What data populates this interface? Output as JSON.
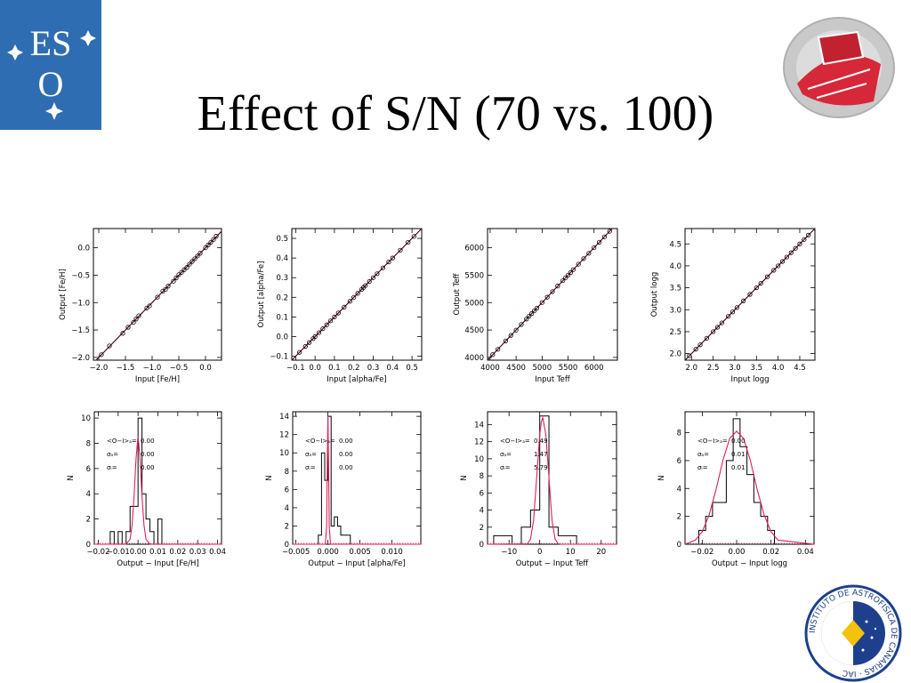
{
  "slide": {
    "title": "Effect of S/N (70 vs. 100)",
    "eso_logo_text": "ESO",
    "iac_logo_text": "INSTITUTO DE ASTROFISICA DE CANARIAS · IAC"
  },
  "colors": {
    "eso_blue": "#2f6db3",
    "fit_line": "#e0205a",
    "points": "#000000"
  },
  "chart_data": [
    {
      "type": "scatter",
      "xlabel": "Input [Fe/H]",
      "ylabel": "Output [Fe/H]",
      "xlim": [
        -2.1,
        0.3
      ],
      "ylim": [
        -2.05,
        0.35
      ],
      "xticks": [
        -2.0,
        -1.5,
        -1.0,
        -0.5,
        0.0
      ],
      "xticklabels": [
        "−2.0",
        "−1.5",
        "−1.0",
        "−0.5",
        "0.0"
      ],
      "yticks": [
        -2.0,
        -1.5,
        -1.0,
        -0.5,
        0.0
      ],
      "yticklabels": [
        "−2.0",
        "−1.5",
        "−1.0",
        "−0.5",
        "0.0"
      ],
      "x": [
        -1.95,
        -1.8,
        -1.55,
        -1.45,
        -1.35,
        -1.3,
        -1.25,
        -1.1,
        -1.05,
        -0.9,
        -0.8,
        -0.75,
        -0.7,
        -0.6,
        -0.55,
        -0.5,
        -0.45,
        -0.4,
        -0.35,
        -0.3,
        -0.25,
        -0.2,
        -0.15,
        -0.1,
        0.0,
        0.05,
        0.1,
        0.15,
        0.2
      ],
      "y": [
        -1.95,
        -1.79,
        -1.56,
        -1.45,
        -1.36,
        -1.3,
        -1.24,
        -1.1,
        -1.06,
        -0.9,
        -0.79,
        -0.76,
        -0.7,
        -0.61,
        -0.55,
        -0.49,
        -0.45,
        -0.4,
        -0.36,
        -0.3,
        -0.25,
        -0.2,
        -0.15,
        -0.1,
        0.0,
        0.05,
        0.1,
        0.15,
        0.21
      ]
    },
    {
      "type": "scatter",
      "xlabel": "Input [alpha/Fe]",
      "ylabel": "Output [alpha/Fe]",
      "xlim": [
        -0.12,
        0.55
      ],
      "ylim": [
        -0.12,
        0.55
      ],
      "xticks": [
        -0.1,
        0.0,
        0.1,
        0.2,
        0.3,
        0.4,
        0.5
      ],
      "xticklabels": [
        "−0.1",
        "0.0",
        "0.1",
        "0.2",
        "0.3",
        "0.4",
        "0.5"
      ],
      "yticks": [
        -0.1,
        0.0,
        0.1,
        0.2,
        0.3,
        0.4,
        0.5
      ],
      "yticklabels": [
        "−0.1",
        "0.0",
        "0.1",
        "0.2",
        "0.3",
        "0.4",
        "0.5"
      ],
      "x": [
        -0.08,
        -0.05,
        -0.03,
        -0.01,
        0.0,
        0.02,
        0.04,
        0.06,
        0.08,
        0.1,
        0.12,
        0.15,
        0.18,
        0.2,
        0.22,
        0.24,
        0.25,
        0.26,
        0.28,
        0.3,
        0.32,
        0.35,
        0.38,
        0.4,
        0.44,
        0.48,
        0.51
      ],
      "y": [
        -0.08,
        -0.05,
        -0.03,
        -0.01,
        0.0,
        0.02,
        0.04,
        0.06,
        0.08,
        0.1,
        0.12,
        0.15,
        0.18,
        0.2,
        0.22,
        0.24,
        0.25,
        0.26,
        0.28,
        0.3,
        0.32,
        0.35,
        0.38,
        0.4,
        0.44,
        0.48,
        0.51
      ]
    },
    {
      "type": "scatter",
      "xlabel": "Input Teff",
      "ylabel": "Output Teff",
      "xlim": [
        3950,
        6450
      ],
      "ylim": [
        3950,
        6350
      ],
      "xticks": [
        4000,
        4500,
        5000,
        5500,
        6000
      ],
      "xticklabels": [
        "4000",
        "4500",
        "5000",
        "5500",
        "6000"
      ],
      "yticks": [
        4000,
        4500,
        5000,
        5500,
        6000
      ],
      "yticklabels": [
        "4000",
        "4500",
        "5000",
        "5500",
        "6000"
      ],
      "x": [
        4050,
        4150,
        4300,
        4400,
        4500,
        4600,
        4700,
        4750,
        4800,
        4850,
        4900,
        5000,
        5100,
        5200,
        5300,
        5400,
        5450,
        5500,
        5550,
        5600,
        5700,
        5800,
        5900,
        6000,
        6100,
        6200,
        6300
      ],
      "y": [
        4052,
        4148,
        4301,
        4402,
        4498,
        4601,
        4700,
        4752,
        4799,
        4851,
        4900,
        5001,
        5099,
        5200,
        5302,
        5400,
        5451,
        5500,
        5549,
        5601,
        5700,
        5802,
        5899,
        6000,
        6101,
        6199,
        6300
      ]
    },
    {
      "type": "scatter",
      "xlabel": "Input logg",
      "ylabel": "Output logg",
      "xlim": [
        1.85,
        4.85
      ],
      "ylim": [
        1.85,
        4.85
      ],
      "xticks": [
        2.0,
        2.5,
        3.0,
        3.5,
        4.0,
        4.5
      ],
      "xticklabels": [
        "2.0",
        "2.5",
        "3.0",
        "3.5",
        "4.0",
        "4.5"
      ],
      "yticks": [
        2.0,
        2.5,
        3.0,
        3.5,
        4.0,
        4.5
      ],
      "yticklabels": [
        "2.0",
        "2.5",
        "3.0",
        "3.5",
        "4.0",
        "4.5"
      ],
      "x": [
        1.95,
        2.1,
        2.2,
        2.35,
        2.5,
        2.6,
        2.7,
        2.85,
        2.95,
        3.05,
        3.2,
        3.35,
        3.5,
        3.6,
        3.75,
        3.9,
        4.0,
        4.1,
        4.2,
        4.3,
        4.4,
        4.5,
        4.6,
        4.7
      ],
      "y": [
        1.95,
        2.1,
        2.2,
        2.35,
        2.5,
        2.6,
        2.7,
        2.85,
        2.95,
        3.05,
        3.2,
        3.35,
        3.5,
        3.6,
        3.75,
        3.9,
        4.0,
        4.1,
        4.2,
        4.3,
        4.4,
        4.5,
        4.6,
        4.7
      ]
    },
    {
      "type": "histogram",
      "xlabel": "Output − Input [Fe/H]",
      "ylabel": "N",
      "xlim": [
        -0.022,
        0.042
      ],
      "ylim": [
        0,
        10.5
      ],
      "xticks": [
        -0.02,
        -0.01,
        0.0,
        0.01,
        0.02,
        0.03,
        0.04
      ],
      "xticklabels": [
        "−0.02",
        "−0.01",
        "0.00",
        "0.01",
        "0.02",
        "0.03",
        "0.04"
      ],
      "yticks": [
        0,
        2,
        4,
        6,
        8,
        10
      ],
      "yticklabels": [
        "0",
        "2",
        "4",
        "6",
        "8",
        "10"
      ],
      "bin_edges": [
        -0.014,
        -0.012,
        -0.01,
        -0.008,
        -0.006,
        -0.004,
        -0.002,
        0.0,
        0.002,
        0.004,
        0.006,
        0.008,
        0.01,
        0.012
      ],
      "counts": [
        1,
        0,
        1,
        0,
        1,
        3,
        3,
        10,
        4,
        2,
        1,
        0,
        2
      ],
      "fit_x": [
        -0.022,
        -0.006,
        -0.004,
        -0.003,
        -0.002,
        -0.001,
        0.0,
        0.001,
        0.002,
        0.003,
        0.004,
        0.006,
        0.042
      ],
      "fit_y": [
        0,
        0.01,
        0.4,
        1.5,
        3.8,
        6.8,
        8.6,
        6.8,
        3.8,
        1.5,
        0.4,
        0.01,
        0
      ],
      "stats": [
        {
          "label": "<O−I>ₐ=",
          "value": "0.00"
        },
        {
          "label": "σₐ=",
          "value": "0.00"
        },
        {
          "label": "σᵢ=",
          "value": "0.00"
        }
      ]
    },
    {
      "type": "histogram",
      "xlabel": "Output − Input [alpha/Fe]",
      "ylabel": "N",
      "xlim": [
        -0.0055,
        0.0145
      ],
      "ylim": [
        0,
        14.5
      ],
      "xticks": [
        -0.005,
        0.0,
        0.005,
        0.01
      ],
      "xticklabels": [
        "−0.005",
        "0.000",
        "0.005",
        "0.010"
      ],
      "yticks": [
        0,
        2,
        4,
        6,
        8,
        10,
        12,
        14
      ],
      "yticklabels": [
        "0",
        "2",
        "4",
        "6",
        "8",
        "10",
        "12",
        "14"
      ],
      "bin_edges": [
        -0.0015,
        -0.001,
        -0.0005,
        0.0,
        0.0005,
        0.001,
        0.0015,
        0.002,
        0.0025,
        0.003,
        0.0035,
        0.004
      ],
      "counts": [
        1,
        10,
        7,
        14,
        2,
        3,
        2,
        1,
        1,
        1,
        0
      ],
      "fit_x": [
        -0.0055,
        -0.0004,
        -0.0002,
        -0.0001,
        0.0,
        0.0001,
        0.0002,
        0.0004,
        0.0145
      ],
      "fit_y": [
        0,
        0.01,
        2.0,
        9.0,
        14.0,
        9.0,
        2.0,
        0.01,
        0
      ],
      "stats": [
        {
          "label": "<O−I>ₐ=",
          "value": "0.00"
        },
        {
          "label": "σₐ=",
          "value": "0.00"
        },
        {
          "label": "σᵢ=",
          "value": "0.00"
        }
      ]
    },
    {
      "type": "histogram",
      "xlabel": "Output − Input Teff",
      "ylabel": "N",
      "xlim": [
        -17,
        25
      ],
      "ylim": [
        0,
        15.5
      ],
      "xticks": [
        -10,
        0,
        10,
        20
      ],
      "xticklabels": [
        "−10",
        "0",
        "10",
        "20"
      ],
      "yticks": [
        0,
        2,
        4,
        6,
        8,
        10,
        12,
        14
      ],
      "yticklabels": [
        "0",
        "2",
        "4",
        "6",
        "8",
        "10",
        "12",
        "14"
      ],
      "bin_edges": [
        -15,
        -12,
        -9,
        -6,
        -3,
        0,
        3,
        6,
        9,
        12,
        15,
        18
      ],
      "counts": [
        1,
        1,
        0,
        2,
        4,
        15,
        2,
        1,
        1,
        0,
        0
      ],
      "fit_x": [
        -17,
        -4,
        -3,
        -2,
        -1,
        0,
        0.5,
        1,
        2,
        3,
        4,
        5,
        6,
        7,
        25
      ],
      "fit_y": [
        0,
        0.05,
        0.6,
        2.8,
        7.8,
        12.8,
        14.3,
        14.8,
        12.8,
        7.8,
        2.8,
        0.6,
        0.05,
        0,
        0
      ],
      "stats": [
        {
          "label": "<O−I>ₐ=",
          "value": "0.49"
        },
        {
          "label": "σₐ=",
          "value": "1.47"
        },
        {
          "label": "σᵢ=",
          "value": "5.79"
        }
      ]
    },
    {
      "type": "histogram",
      "xlabel": "Output − Input logg",
      "ylabel": "N",
      "xlim": [
        -0.03,
        0.045
      ],
      "ylim": [
        0,
        9.5
      ],
      "xticks": [
        -0.02,
        0.0,
        0.02,
        0.04
      ],
      "xticklabels": [
        "−0.02",
        "0.00",
        "0.02",
        "0.04"
      ],
      "yticks": [
        0,
        2,
        4,
        6,
        8
      ],
      "yticklabels": [
        "0",
        "2",
        "4",
        "6",
        "8"
      ],
      "bin_edges": [
        -0.022,
        -0.018,
        -0.014,
        -0.01,
        -0.006,
        -0.002,
        0.002,
        0.006,
        0.01,
        0.014,
        0.018,
        0.022
      ],
      "counts": [
        1,
        2,
        3,
        3,
        6,
        9,
        7,
        5,
        3,
        2,
        1
      ],
      "fit_x": [
        -0.03,
        -0.024,
        -0.02,
        -0.016,
        -0.012,
        -0.008,
        -0.004,
        0.0,
        0.004,
        0.008,
        0.012,
        0.016,
        0.02,
        0.024,
        0.045
      ],
      "fit_y": [
        0,
        0.3,
        0.9,
        2.1,
        3.9,
        6.0,
        7.6,
        8.1,
        7.6,
        6.0,
        3.9,
        2.1,
        0.9,
        0.3,
        0
      ],
      "stats": [
        {
          "label": "<O−I>ₐ=",
          "value": "0.00"
        },
        {
          "label": "σₐ=",
          "value": "0.01"
        },
        {
          "label": "σᵢ=",
          "value": "0.01"
        }
      ]
    }
  ]
}
